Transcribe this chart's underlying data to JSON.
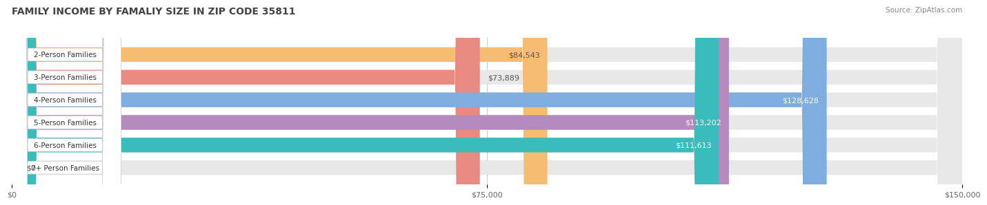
{
  "title": "FAMILY INCOME BY FAMALIY SIZE IN ZIP CODE 35811",
  "source": "Source: ZipAtlas.com",
  "categories": [
    "2-Person Families",
    "3-Person Families",
    "4-Person Families",
    "5-Person Families",
    "6-Person Families",
    "7+ Person Families"
  ],
  "values": [
    84543,
    73889,
    128628,
    113202,
    111613,
    0
  ],
  "bar_colors": [
    "#f5bc72",
    "#e88a82",
    "#7eaee0",
    "#b48abf",
    "#3bbcbc",
    "#c5c8e8"
  ],
  "label_colors": [
    "#555555",
    "#555555",
    "#ffffff",
    "#ffffff",
    "#ffffff",
    "#555555"
  ],
  "bar_bg_color": "#e8e8e8",
  "xlim": [
    0,
    150000
  ],
  "xticks": [
    0,
    75000,
    150000
  ],
  "xtick_labels": [
    "$0",
    "$75,000",
    "$150,000"
  ],
  "value_labels": [
    "$84,543",
    "$73,889",
    "$128,628",
    "$113,202",
    "$111,613",
    "$0"
  ],
  "title_fontsize": 10,
  "source_fontsize": 7.5,
  "bar_height": 0.65,
  "background_color": "#ffffff"
}
